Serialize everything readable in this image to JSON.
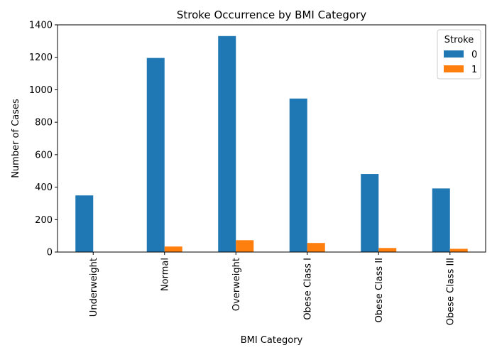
{
  "chart_data": {
    "type": "bar",
    "title": "Stroke Occurrence by BMI Category",
    "xlabel": "BMI Category",
    "ylabel": "Number of Cases",
    "categories": [
      "Underweight",
      "Normal",
      "Overweight",
      "Obese Class I",
      "Obese Class II",
      "Obese Class III"
    ],
    "series": [
      {
        "name": "0",
        "color": "#1f77b4",
        "values": [
          349,
          1196,
          1331,
          946,
          481,
          392
        ]
      },
      {
        "name": "1",
        "color": "#ff7f0e",
        "values": [
          1,
          34,
          73,
          56,
          25,
          20
        ]
      }
    ],
    "ylim": [
      0,
      1400
    ],
    "yticks": [
      0,
      200,
      400,
      600,
      800,
      1000,
      1200,
      1400
    ],
    "legend": {
      "title": "Stroke",
      "position": "top-right"
    },
    "grid": false
  }
}
